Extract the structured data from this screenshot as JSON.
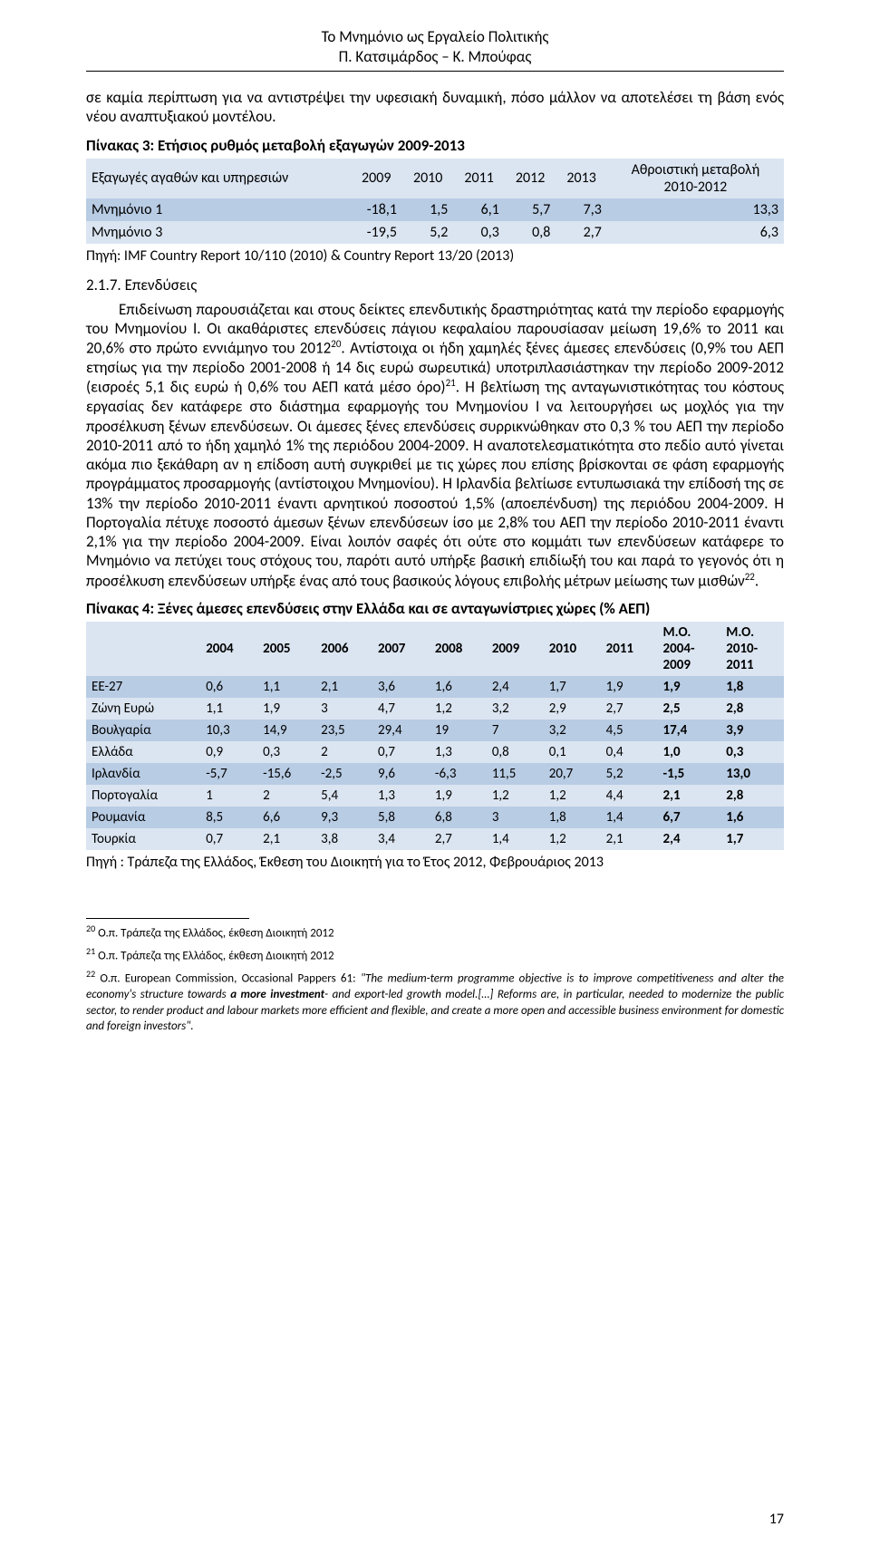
{
  "doc": {
    "header_title": "Το Μνημόνιο ως Εργαλείο Πολιτικής",
    "header_sub": "Π. Κατσιμάρδος – Κ. Μπούφας",
    "para_intro": "σε καμία περίπτωση για να αντιστρέψει την υφεσιακή δυναμική, πόσο μάλλον   να αποτελέσει τη βάση ενός νέου αναπτυξιακού μοντέλου.",
    "t3_title": "Πίνακας 3: Ετήσιος ρυθμός μεταβολή εξαγωγών 2009-2013",
    "t3_source": "Πηγή: IMF Country Report 10/110 (2010) & Country Report 13/20 (2013)",
    "subsection": "2.1.7. Επενδύσεις",
    "para_main": "Επιδείνωση παρουσιάζεται και στους δείκτες επενδυτικής δραστηριότητας κατά την περίοδο εφαρμογής του Μνημονίου Ι. Οι ακαθάριστες επενδύσεις πάγιου κεφαλαίου παρουσίασαν  μείωση 19,6% το 2011 και 20,6% στο πρώτο εννιάμηνο του 2012",
    "fnref20": "20",
    "para_main2": ". Αντίστοιχα οι ήδη χαμηλές ξένες άμεσες επενδύσεις (0,9% του ΑΕΠ ετησίως για την περίοδο 2001-2008 ή 14 δις ευρώ σωρευτικά) υποτριπλασιάστηκαν την περίοδο 2009-2012 (εισροές 5,1 δις ευρώ ή 0,6% του ΑΕΠ κατά μέσο όρο)",
    "fnref21": "21",
    "para_main3": ". Η βελτίωση της ανταγωνιστικότητας του κόστους εργασίας δεν κατάφερε στο διάστημα εφαρμογής του Μνημονίου Ι να λειτουργήσει ως μοχλός για την προσέλκυση ξένων επενδύσεων. Οι άμεσες ξένες επενδύσεις συρρικνώθηκαν στο 0,3 % του ΑΕΠ την περίοδο 2010-2011 από το ήδη χαμηλό 1% της περιόδου 2004-2009. Η αναποτελεσματικότητα στο πεδίο αυτό γίνεται ακόμα πιο ξεκάθαρη αν η επίδοση αυτή συγκριθεί με τις χώρες που επίσης βρίσκονται σε φάση εφαρμογής προγράμματος προσαρμογής (αντίστοιχου Μνημονίου). Η Ιρλανδία βελτίωσε εντυπωσιακά την επίδοσή της σε 13% την περίοδο 2010-2011 έναντι αρνητικού ποσοστού 1,5% (αποεπένδυση) της περιόδου 2004-2009. Η Πορτογαλία πέτυχε ποσοστό άμεσων ξένων επενδύσεων ίσο με 2,8% του ΑΕΠ την περίοδο 2010-2011 έναντι 2,1% για την περίοδο 2004-2009. Είναι λοιπόν σαφές ότι ούτε στο κομμάτι των επενδύσεων κατάφερε το Μνημόνιο να πετύχει τους στόχους του, παρότι αυτό υπήρξε βασική επιδίωξή του και παρά το γεγονός ότι η προσέλκυση επενδύσεων υπήρξε ένας από τους βασικούς λόγους επιβολής μέτρων μείωσης των μισθών",
    "fnref22": "22",
    "para_main4": ".",
    "t4_title": "Πίνακας 4: Ξένες άμεσες επενδύσεις στην Ελλάδα και σε ανταγωνίστριες χώρες (% ΑΕΠ)",
    "t4_source": "Πηγή : Τράπεζα της Ελλάδος,  Έκθεση του Διοικητή για το Έτος 2012, Φεβρουάριος 2013",
    "page_number": "17"
  },
  "table3": {
    "band_colors": {
      "even": "#b8cce4",
      "odd": "#dbe5f1"
    },
    "columns": [
      "",
      "2009",
      "2010",
      "2011",
      "2012",
      "2013",
      ""
    ],
    "head_row_label": "Εξαγωγές αγαθών και υπηρεσιών",
    "head_last_line1": "Αθροιστική μεταβολή",
    "head_last_line2": "2010-2012",
    "rows": [
      {
        "label": "Μνημόνιο 1",
        "v": [
          "-18,1",
          "1,5",
          "6,1",
          "5,7",
          "7,3",
          "13,3"
        ]
      },
      {
        "label": "Μνημόνιο 3",
        "v": [
          "-19,5",
          "5,2",
          "0,3",
          "0,8",
          "2,7",
          "6,3"
        ]
      }
    ]
  },
  "table4": {
    "head": [
      "",
      "2004",
      "2005",
      "2006",
      "2007",
      "2008",
      "2009",
      "2010",
      "2011",
      "M.O.\n2004-\n2009",
      "M.O.\n2010-\n2011"
    ],
    "head_mo1a": "M.O.",
    "head_mo1b": "2004-",
    "head_mo1c": "2009",
    "head_mo2a": "M.O.",
    "head_mo2b": "2010-",
    "head_mo2c": "2011",
    "rows": [
      {
        "label": "ΕΕ-27",
        "v": [
          "0,6",
          "1,1",
          "2,1",
          "3,6",
          "1,6",
          "2,4",
          "1,7",
          "1,9",
          "1,9",
          "1,8"
        ]
      },
      {
        "label": "Ζώνη Ευρώ",
        "v": [
          "1,1",
          "1,9",
          "3",
          "4,7",
          "1,2",
          "3,2",
          "2,9",
          "2,7",
          "2,5",
          "2,8"
        ]
      },
      {
        "label": "Βουλγαρία",
        "v": [
          "10,3",
          "14,9",
          "23,5",
          "29,4",
          "19",
          "7",
          "3,2",
          "4,5",
          "17,4",
          "3,9"
        ]
      },
      {
        "label": "Ελλάδα",
        "v": [
          "0,9",
          "0,3",
          "2",
          "0,7",
          "1,3",
          "0,8",
          "0,1",
          "0,4",
          "1,0",
          "0,3"
        ]
      },
      {
        "label": "Ιρλανδία",
        "v": [
          "-5,7",
          "-15,6",
          "-2,5",
          "9,6",
          "-6,3",
          "11,5",
          "20,7",
          "5,2",
          "-1,5",
          "13,0"
        ]
      },
      {
        "label": "Πορτογαλία",
        "v": [
          "1",
          "2",
          "5,4",
          "1,3",
          "1,9",
          "1,2",
          "1,2",
          "4,4",
          "2,1",
          "2,8"
        ]
      },
      {
        "label": "Ρουμανία",
        "v": [
          "8,5",
          "6,6",
          "9,3",
          "5,8",
          "6,8",
          "3",
          "1,8",
          "1,4",
          "6,7",
          "1,6"
        ]
      },
      {
        "label": "Τουρκία",
        "v": [
          "0,7",
          "2,1",
          "3,8",
          "3,4",
          "2,7",
          "1,4",
          "1,2",
          "2,1",
          "2,4",
          "1,7"
        ]
      }
    ]
  },
  "footnotes": {
    "f20": "Ο.π. Τράπεζα της Ελλάδος, έκθεση Διοικητή 2012",
    "f21": "Ο.π. Τράπεζα της Ελλάδος, έκθεση Διοικητή 2012",
    "f22a": "Ο.π. European Commission, Occasional Pappers 61: ",
    "f22_quote": "\"The medium-term programme objective is to improve competitiveness and alter the economy's structure towards ",
    "f22_bold": "a more investment",
    "f22_quote2": "- and export-led growth model.[…] Reforms are, in particular, needed to modernize the public sector, to render product and labour markets more efficient and flexible, and create a more open and accessible business environment for domestic and foreign investors\"."
  }
}
